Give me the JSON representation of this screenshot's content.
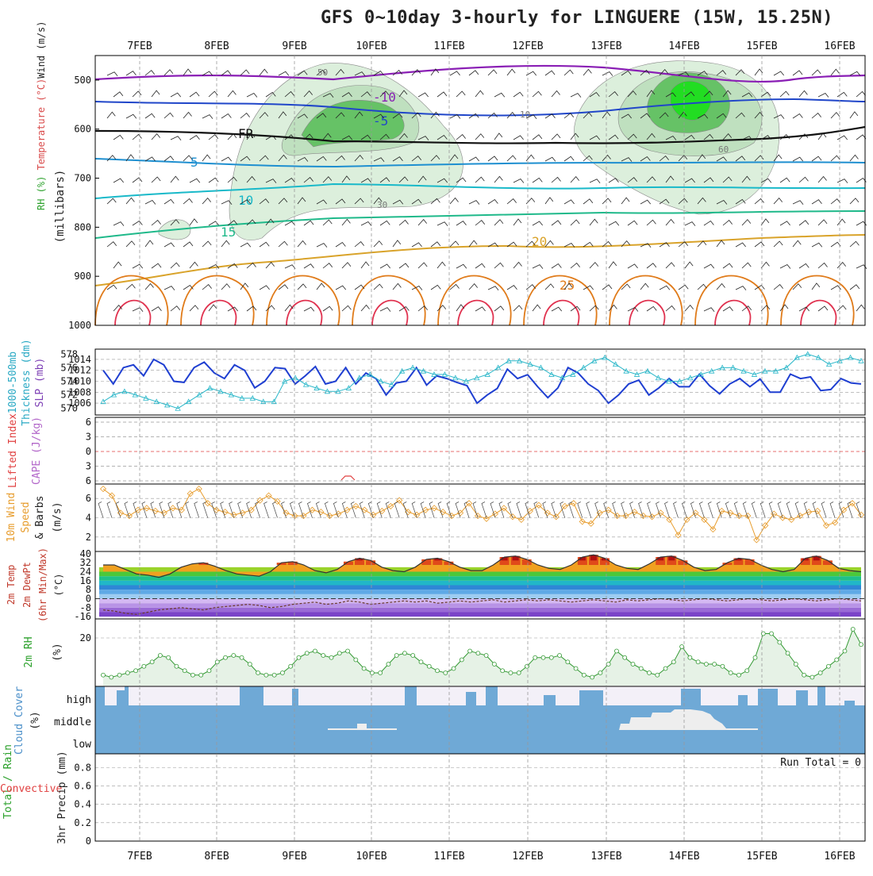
{
  "title": "GFS 0~10day 3-hourly for LINGUERE (15W, 15.25N)",
  "dates": [
    "7FEB",
    "8FEB",
    "9FEB",
    "10FEB",
    "11FEB",
    "12FEB",
    "13FEB",
    "14FEB",
    "15FEB",
    "16FEB"
  ],
  "colors": {
    "rh_green": "#33cc33",
    "temp_warm": "#e07b1a",
    "temp_cold": "#7a1fa2",
    "slp": "#1f3fd1",
    "thickness": "#2ab7c9",
    "wind10m": "#e79c2c",
    "rh2m": "#339933",
    "cloud": "#6fa9d6",
    "grid": "#999999"
  },
  "chart_data": [
    {
      "type": "contour",
      "name": "upper-air",
      "ylabel_parts": [
        "RH (%)",
        "Temperature (°C)",
        "Wind (m/s)"
      ],
      "ylabel_units": "(millibars)",
      "y_ticks": [
        500,
        600,
        700,
        800,
        900,
        1000
      ],
      "ylim": [
        450,
        1000
      ],
      "isotherm_labels": [
        "-10",
        "-5",
        "FR",
        "5",
        "10",
        "15",
        "20",
        "25"
      ],
      "rh_labels": [
        "30",
        "50",
        "60",
        "10"
      ]
    },
    {
      "type": "line",
      "name": "slp-thickness",
      "left_label": [
        "1000-500mb",
        "Thickness (dm)"
      ],
      "right_label": "SLP (mb)",
      "left_ticks": [
        570,
        572,
        574,
        576,
        578
      ],
      "right_ticks": [
        1006,
        1008,
        1010,
        1012,
        1014
      ],
      "series": [
        {
          "values": [
            1012,
            1009.5,
            1012.5,
            1013,
            1011,
            1014,
            1013,
            1010,
            1009.8,
            1012.5,
            1013.5,
            1011.5,
            1010.5,
            1013,
            1012,
            1008.8,
            1010,
            1012.5,
            1012.3,
            1009.5,
            1011,
            1012.7,
            1009.5,
            1010,
            1012.5,
            1009.5,
            1011.5,
            1010.5,
            1007.5,
            1009.7,
            1010,
            1012.5,
            1009.3,
            1011,
            1010.5,
            1009.8,
            1009.2,
            1006,
            1007.5,
            1008.7,
            1012.2,
            1010.5,
            1011.2,
            1009,
            1007,
            1008.8,
            1012.5,
            1011.5,
            1009.5,
            1008.3,
            1006,
            1007.5,
            1009.5,
            1010.2,
            1007.5,
            1008.8,
            1010.5,
            1009,
            1009,
            1011.3,
            1009.2,
            1007.7,
            1009.5,
            1010.5,
            1009,
            1010.4,
            1008,
            1008,
            1011.3,
            1010.5,
            1010.8,
            1008.3,
            1008.5,
            1010.5,
            1009.7,
            1009.5
          ],
          "ref": "slp"
        },
        {
          "values": [
            571,
            572,
            572.5,
            572,
            571.5,
            571,
            570.5,
            570,
            571,
            572,
            573,
            572.5,
            572,
            571.5,
            571.5,
            571,
            571,
            574,
            574.5,
            573.5,
            573,
            572.5,
            572.5,
            573,
            574.5,
            575,
            574,
            573.5,
            575.5,
            576,
            575.5,
            575,
            575,
            574.5,
            574,
            574.5,
            575,
            576,
            577,
            577,
            576.5,
            576,
            575,
            574.5,
            575,
            576,
            577,
            577.5,
            576.5,
            575.5,
            575,
            575.5,
            574.5,
            574,
            574,
            574.5,
            575,
            575.5,
            576,
            576,
            575.5,
            575,
            575.5,
            575.5,
            576,
            577.5,
            578,
            577.5,
            576.5,
            577,
            577.5,
            577
          ],
          "ref": "thickness"
        }
      ]
    },
    {
      "type": "line",
      "name": "lifted-index-cape",
      "ylabel_parts": [
        "Lifted Index",
        "CAPE (J/kg)"
      ],
      "y_ticks": [
        "6",
        "3",
        "0",
        "3",
        "6"
      ],
      "ylim": [
        -6,
        6
      ],
      "values": []
    },
    {
      "type": "line",
      "name": "wind10m",
      "ylabel_parts": [
        "10m Wind",
        "Speed",
        "& Barbs",
        "(m/s)"
      ],
      "y_ticks": [
        2,
        4,
        6
      ],
      "ylim": [
        0.5,
        7.5
      ],
      "values": [
        7,
        6.3,
        4.5,
        4.2,
        4.8,
        5,
        4.7,
        4.5,
        5,
        4.8,
        6.5,
        7,
        5.5,
        4.8,
        4.6,
        4.3,
        4.5,
        4.8,
        5.8,
        6.3,
        5.7,
        4.5,
        4.2,
        4.2,
        4.8,
        4.6,
        4.2,
        4.4,
        4.8,
        5.2,
        4.8,
        4.3,
        4.7,
        5.2,
        5.8,
        4.6,
        4.3,
        4.8,
        5,
        4.6,
        4.2,
        4.5,
        5.5,
        4.2,
        3.9,
        4.4,
        5,
        4.1,
        3.8,
        4.7,
        5.3,
        4.5,
        4.1,
        5.2,
        5.5,
        3.6,
        3.4,
        4.5,
        4.8,
        4.2,
        4.2,
        4.6,
        4.2,
        4.1,
        4.5,
        3.8,
        2.2,
        3.8,
        4.5,
        3.8,
        2.8,
        4.7,
        4.5,
        4.2,
        4.2,
        1.7,
        3.2,
        4.4,
        4,
        3.8,
        4.2,
        4.6,
        4.7,
        3.2,
        3.5,
        4.8,
        5.5,
        4.3
      ]
    },
    {
      "type": "area",
      "name": "temp2m",
      "ylabel_parts": [
        "2m Temp",
        "2m DewPt",
        "(6hr Min/Max)",
        "(°C)"
      ],
      "y_ticks": [
        40,
        32,
        24,
        16,
        8,
        0,
        -8,
        -16
      ],
      "ylim": [
        -18,
        42
      ],
      "temp_values": [
        30,
        30,
        26,
        22,
        21,
        19,
        22,
        28,
        31,
        32,
        29,
        25,
        22,
        21,
        20,
        24,
        32,
        33,
        30,
        25,
        23,
        26,
        33,
        36,
        34,
        28,
        25,
        24,
        28,
        35,
        36,
        33,
        28,
        25,
        25,
        30,
        37,
        38,
        35,
        30,
        27,
        26,
        30,
        37,
        39,
        36,
        30,
        27,
        26,
        31,
        37,
        38,
        34,
        28,
        25,
        26,
        32,
        36,
        35,
        30,
        26,
        24,
        26,
        36,
        38,
        34,
        27,
        25,
        24
      ],
      "dewpt_values": [
        -10,
        -11,
        -13,
        -14,
        -12,
        -10,
        -9,
        -8,
        -9,
        -10,
        -8,
        -7,
        -6,
        -5,
        -6,
        -8,
        -7,
        -5,
        -4,
        -3,
        -5,
        -4,
        -2,
        -3,
        -5,
        -4,
        -3,
        -2,
        -3,
        -2,
        -4,
        -3,
        -2,
        -3,
        -2,
        -1,
        -3,
        -2,
        -1,
        -2,
        -1,
        -2,
        -3,
        -2,
        -1,
        -2,
        -3,
        -1,
        -2,
        -1,
        0,
        -1,
        -2,
        -1,
        0,
        -1,
        -2,
        -1,
        0,
        -1,
        -2,
        -1,
        0,
        -1,
        -2,
        -1,
        0,
        -1,
        -2
      ]
    },
    {
      "type": "area",
      "name": "rh2m",
      "ylabel_parts": [
        "2m RH",
        "(%)"
      ],
      "y_ticks": [
        20
      ],
      "ylim": [
        0,
        28
      ],
      "values": [
        3,
        2,
        3,
        4,
        5,
        7,
        9,
        12,
        11,
        7,
        5,
        3,
        3,
        5,
        9,
        11,
        12,
        11,
        8,
        4,
        3,
        3,
        4,
        7,
        11,
        13,
        14,
        12,
        11,
        13,
        14,
        10,
        6,
        4,
        4,
        8,
        12,
        13,
        12,
        9,
        7,
        5,
        4,
        6,
        10,
        14,
        13,
        12,
        8,
        5,
        4,
        4,
        7,
        11,
        11,
        11,
        12,
        9,
        6,
        3,
        2,
        4,
        8,
        14,
        11,
        8,
        6,
        4,
        3,
        6,
        9,
        16,
        11,
        9,
        8,
        8,
        7,
        4,
        3,
        5,
        11,
        22,
        22,
        18,
        13,
        8,
        3,
        2,
        4,
        7,
        10,
        14,
        24,
        17
      ]
    },
    {
      "type": "heatmap",
      "name": "cloud-cover",
      "ylabel_parts": [
        "Cloud Cover",
        "(%)"
      ],
      "levels": [
        "high",
        "middle",
        "low"
      ]
    },
    {
      "type": "bar",
      "name": "precip",
      "ylabel_parts": [
        "Total / Rain",
        "Convective",
        "3hr Precip (mm)"
      ],
      "y_ticks": [
        0,
        0.2,
        0.4,
        0.6,
        0.8
      ],
      "ylim": [
        0,
        0.95
      ],
      "run_total": "Run Total = 0",
      "values": []
    }
  ]
}
